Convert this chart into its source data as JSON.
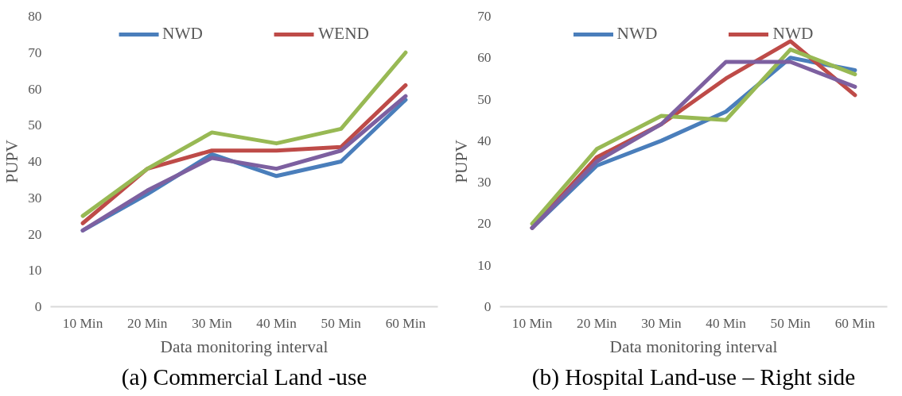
{
  "chart_data": [
    {
      "type": "line",
      "title": "(a) Commercial Land -use",
      "xlabel": "Data monitoring interval",
      "ylabel": "PUPV",
      "categories": [
        "10 Min",
        "20 Min",
        "30 Min",
        "40 Min",
        "50 Min",
        "60 Min"
      ],
      "series": [
        {
          "name": "NWD",
          "color": "#4a7ebb",
          "values": [
            21,
            31,
            42,
            36,
            40,
            57
          ]
        },
        {
          "name": "WEND",
          "color": "#be4b48",
          "values": [
            23,
            38,
            43,
            43,
            44,
            61
          ]
        },
        {
          "color": "#98b954",
          "values": [
            25,
            38,
            48,
            45,
            49,
            70
          ]
        },
        {
          "color": "#7d60a0",
          "values": [
            21,
            32,
            41,
            38,
            43,
            58
          ]
        }
      ],
      "ylim": [
        0,
        80
      ],
      "yticks": [
        0,
        10,
        20,
        30,
        40,
        50,
        60,
        70,
        80
      ],
      "grid": false,
      "legend": "top",
      "marker": "none",
      "line_style": "solid"
    },
    {
      "type": "line",
      "title": "(b) Hospital Land-use – Right side",
      "xlabel": "Data monitoring interval",
      "ylabel": "PUPV",
      "categories": [
        "10 Min",
        "20 Min",
        "30 Min",
        "40 Min",
        "50 Min",
        "60 Min"
      ],
      "series": [
        {
          "name": "NWD",
          "color": "#4a7ebb",
          "values": [
            19,
            34,
            40,
            47,
            60,
            57
          ]
        },
        {
          "name": "NWD",
          "color": "#be4b48",
          "values": [
            19,
            36,
            44,
            55,
            64,
            51
          ]
        },
        {
          "color": "#98b954",
          "values": [
            20,
            38,
            46,
            45,
            62,
            56
          ]
        },
        {
          "color": "#7d60a0",
          "values": [
            19,
            35,
            44,
            59,
            59,
            53
          ]
        }
      ],
      "ylim": [
        0,
        70
      ],
      "yticks": [
        0,
        10,
        20,
        30,
        40,
        50,
        60,
        70
      ],
      "grid": false,
      "legend": "top",
      "marker": "none",
      "line_style": "solid"
    }
  ]
}
